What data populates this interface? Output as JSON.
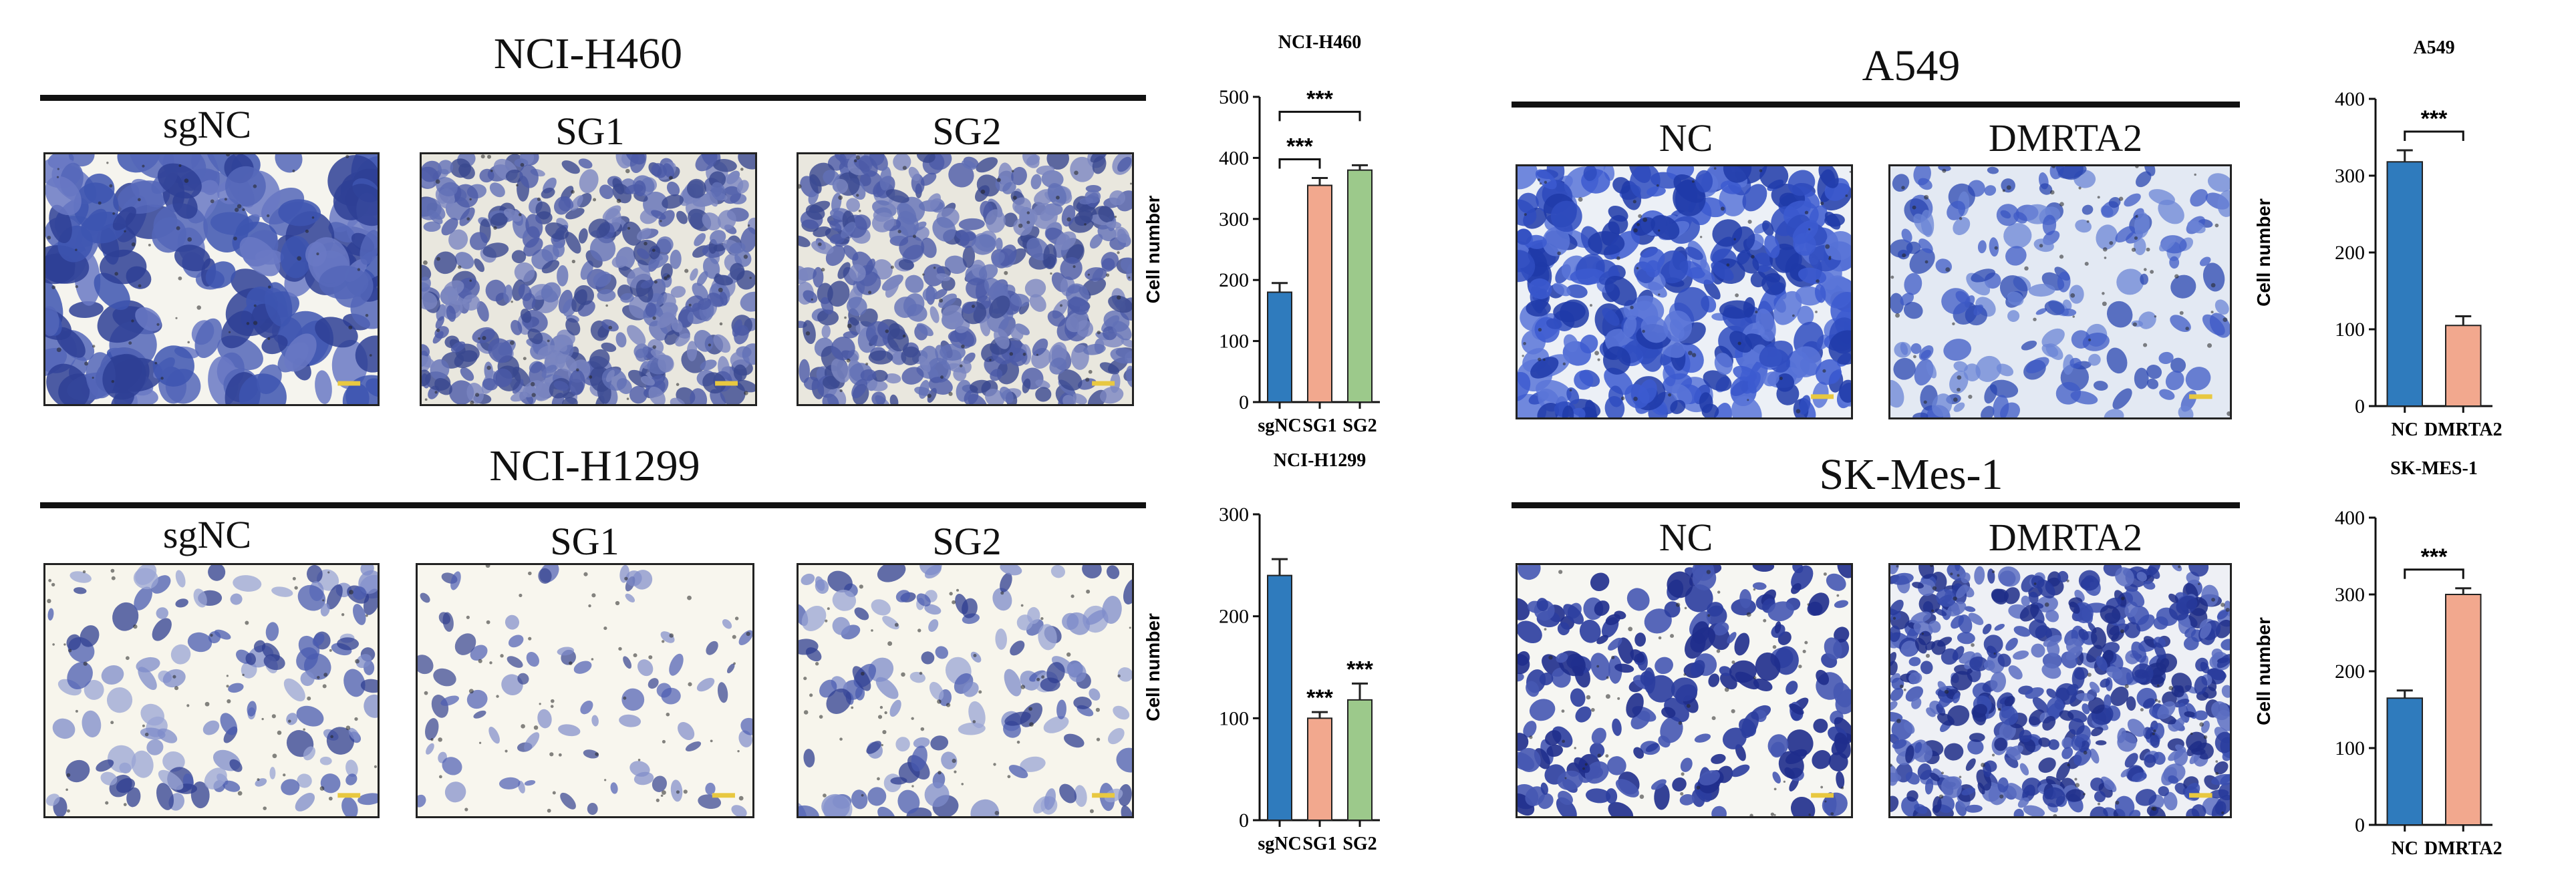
{
  "panels": [
    {
      "id": "h460",
      "title": "NCI-H460",
      "images": [
        {
          "label": "sgNC",
          "style": "dense-blue"
        },
        {
          "label": "SG1",
          "style": "packed"
        },
        {
          "label": "SG2",
          "style": "packed"
        }
      ]
    },
    {
      "id": "h1299",
      "title": "NCI-H1299",
      "images": [
        {
          "label": "sgNC",
          "style": "sparse"
        },
        {
          "label": "SG1",
          "style": "very-sparse"
        },
        {
          "label": "SG2",
          "style": "sparse"
        }
      ]
    },
    {
      "id": "a549",
      "title": "A549",
      "images": [
        {
          "label": "NC",
          "style": "fibrous"
        },
        {
          "label": "DMRTA2",
          "style": "light-sparse"
        }
      ]
    },
    {
      "id": "skmes",
      "title": "SK-Mes-1",
      "images": [
        {
          "label": "NC",
          "style": "sparse-dark"
        },
        {
          "label": "DMRTA2",
          "style": "packed-dark"
        }
      ]
    }
  ],
  "colors": {
    "blue": "#2f7bbd",
    "salmon": "#f2a88e",
    "green": "#9cc98b",
    "stain": "#3b4fa8"
  },
  "chart_data": [
    {
      "id": "chart-h460",
      "type": "bar",
      "title": "NCI-H460",
      "ylabel": "Cell number",
      "categories": [
        "sgNC",
        "SG1",
        "SG2"
      ],
      "values": [
        180,
        355,
        380
      ],
      "errors": [
        15,
        12,
        8
      ],
      "ylim": [
        0,
        500
      ],
      "yticks": [
        0,
        100,
        200,
        300,
        400,
        500
      ],
      "colors": [
        "#2f7bbd",
        "#f2a88e",
        "#9cc98b"
      ],
      "annotations": [
        {
          "text": "***",
          "from": 0,
          "to": 1
        },
        {
          "text": "***",
          "from": 0,
          "to": 2
        }
      ]
    },
    {
      "id": "chart-h1299",
      "type": "bar",
      "title": "NCI-H1299",
      "ylabel": "Cell number",
      "categories": [
        "sgNC",
        "SG1",
        "SG2"
      ],
      "values": [
        240,
        100,
        118
      ],
      "errors": [
        16,
        6,
        16
      ],
      "ylim": [
        0,
        300
      ],
      "yticks": [
        0,
        100,
        200,
        300
      ],
      "colors": [
        "#2f7bbd",
        "#f2a88e",
        "#9cc98b"
      ],
      "annotations": [
        {
          "text": "***",
          "over": 1
        },
        {
          "text": "***",
          "over": 2
        }
      ]
    },
    {
      "id": "chart-a549",
      "type": "bar",
      "title": "A549",
      "ylabel": "Cell number",
      "categories": [
        "NC",
        "DMRTA2"
      ],
      "values": [
        318,
        105
      ],
      "errors": [
        15,
        12
      ],
      "ylim": [
        0,
        400
      ],
      "yticks": [
        0,
        100,
        200,
        300,
        400
      ],
      "colors": [
        "#2f7bbd",
        "#f2a88e"
      ],
      "annotations": [
        {
          "text": "***",
          "from": 0,
          "to": 1
        }
      ]
    },
    {
      "id": "chart-skmes",
      "type": "bar",
      "title": "SK-MES-1",
      "ylabel": "Cell number",
      "categories": [
        "NC",
        "DMRTA2"
      ],
      "values": [
        165,
        300
      ],
      "errors": [
        10,
        8
      ],
      "ylim": [
        0,
        400
      ],
      "yticks": [
        0,
        100,
        200,
        300,
        400
      ],
      "colors": [
        "#2f7bbd",
        "#f2a88e"
      ],
      "annotations": [
        {
          "text": "***",
          "from": 0,
          "to": 1
        }
      ]
    }
  ]
}
